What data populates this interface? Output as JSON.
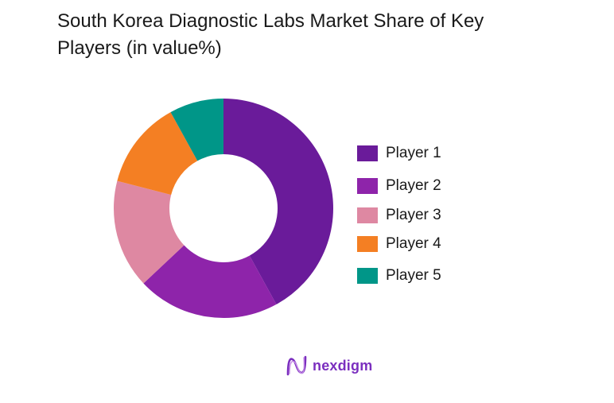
{
  "title": {
    "line1": "South Korea Diagnostic Labs Market Share of Key",
    "line2": "Players (in value%)"
  },
  "legend": {
    "items": [
      {
        "label": "Player 1",
        "color": "#6a1b9a"
      },
      {
        "label": "Player 2",
        "color": "#8e24aa"
      },
      {
        "label": "Player 3",
        "color": "#de88a2"
      },
      {
        "label": "Player 4",
        "color": "#f47f23"
      },
      {
        "label": "Player 5",
        "color": "#009688"
      }
    ]
  },
  "logo": {
    "text": "nexdigm",
    "icon": "nexdigm-wave-icon"
  },
  "chart_data": {
    "type": "pie",
    "subtype": "donut",
    "title": "South Korea Diagnostic Labs Market Share of Key Players (in value%)",
    "categories": [
      "Player 1",
      "Player 2",
      "Player 3",
      "Player 4",
      "Player 5"
    ],
    "values": [
      42,
      21,
      16,
      13,
      8
    ],
    "colors": [
      "#6a1b9a",
      "#8e24aa",
      "#de88a2",
      "#f47f23",
      "#009688"
    ],
    "start_angle": "12 o'clock",
    "direction": "clockwise",
    "legend_position": "right",
    "data_labels": false
  }
}
